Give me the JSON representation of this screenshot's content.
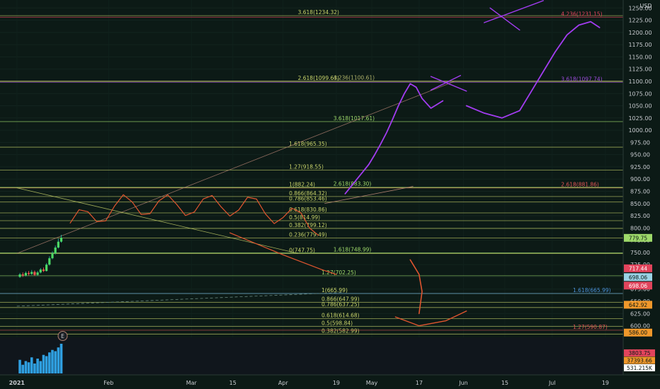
{
  "chart_data": {
    "type": "line",
    "title": "",
    "xlabel": "",
    "ylabel": "",
    "currency": "USD",
    "ylim": [
      582,
      1262
    ],
    "y_ticks": [
      600,
      625,
      650,
      675,
      700,
      725,
      750,
      775,
      800,
      825,
      850,
      875,
      900,
      925,
      950,
      975,
      1000,
      1025,
      1050,
      1075,
      1100,
      1125,
      1150,
      1175,
      1200,
      1225,
      1250
    ],
    "x_ticks": [
      {
        "label": "2021",
        "day": 0
      },
      {
        "label": "Feb",
        "day": 31
      },
      {
        "label": "Mar",
        "day": 59
      },
      {
        "label": "15",
        "day": 73
      },
      {
        "label": "Apr",
        "day": 90
      },
      {
        "label": "19",
        "day": 108
      },
      {
        "label": "May",
        "day": 120
      },
      {
        "label": "17",
        "day": 136
      },
      {
        "label": "Jun",
        "day": 151
      },
      {
        "label": "15",
        "day": 165
      },
      {
        "label": "Jul",
        "day": 181
      },
      {
        "label": "19",
        "day": 199
      }
    ],
    "xlim": [
      -5,
      205
    ],
    "candles": [
      {
        "day": 1,
        "o": 700,
        "c": 705,
        "h": 708,
        "l": 698
      },
      {
        "day": 2,
        "o": 705,
        "c": 703,
        "h": 709,
        "l": 700
      },
      {
        "day": 3,
        "o": 703,
        "c": 708,
        "h": 711,
        "l": 701
      },
      {
        "day": 4,
        "o": 708,
        "c": 706,
        "h": 712,
        "l": 703
      },
      {
        "day": 5,
        "o": 706,
        "c": 710,
        "h": 714,
        "l": 704
      },
      {
        "day": 6,
        "o": 710,
        "c": 704,
        "h": 713,
        "l": 702
      },
      {
        "day": 7,
        "o": 704,
        "c": 709,
        "h": 712,
        "l": 702
      },
      {
        "day": 8,
        "o": 709,
        "c": 715,
        "h": 718,
        "l": 707
      },
      {
        "day": 9,
        "o": 715,
        "c": 712,
        "h": 719,
        "l": 710
      },
      {
        "day": 10,
        "o": 712,
        "c": 725,
        "h": 728,
        "l": 711
      },
      {
        "day": 11,
        "o": 725,
        "c": 738,
        "h": 742,
        "l": 723
      },
      {
        "day": 12,
        "o": 738,
        "c": 748,
        "h": 752,
        "l": 736
      },
      {
        "day": 13,
        "o": 748,
        "c": 760,
        "h": 764,
        "l": 746
      },
      {
        "day": 14,
        "o": 760,
        "c": 772,
        "h": 778,
        "l": 758
      },
      {
        "day": 15,
        "o": 772,
        "c": 780,
        "h": 786,
        "l": 770
      }
    ],
    "horizontal_levels": [
      {
        "label": "3.618(1234.32)",
        "value": 1234.32,
        "day": 95,
        "color": "#c9d46a"
      },
      {
        "label": "4.236(1231.15)",
        "value": 1231.15,
        "day": 184,
        "color": "#e2445c"
      },
      {
        "label": "2.618(1099.63)",
        "value": 1099.63,
        "day": 95,
        "color": "#c9d46a"
      },
      {
        "label": "4.236(1100.61)",
        "value": 1100.61,
        "day": 107,
        "color": "#b0b36a"
      },
      {
        "label": "3.618(1097.74)",
        "value": 1097.74,
        "day": 184,
        "color": "#9b4bd9"
      },
      {
        "label": "3.618(1017.61)",
        "value": 1017.61,
        "day": 107,
        "color": "#9ed96a"
      },
      {
        "label": "1.618(965.35)",
        "value": 965.35,
        "day": 92,
        "color": "#c9d46a"
      },
      {
        "label": "1.27(918.55)",
        "value": 918.55,
        "day": 92,
        "color": "#c9d46a"
      },
      {
        "label": "2.618(883.30)",
        "value": 883.3,
        "day": 107,
        "color": "#9ed96a"
      },
      {
        "label": "2.618(881.86)",
        "value": 881.86,
        "day": 184,
        "color": "#e05555"
      },
      {
        "label": "1(882.24)",
        "value": 882.24,
        "day": 92,
        "color": "#c9d46a"
      },
      {
        "label": "0.866(864.32)",
        "value": 864.32,
        "day": 92,
        "color": "#c9d46a"
      },
      {
        "label": "0.786(853.46)",
        "value": 853.46,
        "day": 92,
        "color": "#c9d46a"
      },
      {
        "label": "0.618(830.86)",
        "value": 830.86,
        "day": 92,
        "color": "#c9d46a"
      },
      {
        "label": "0.5(814.99)",
        "value": 814.99,
        "day": 92,
        "color": "#c9d46a"
      },
      {
        "label": "0.382(799.12)",
        "value": 799.12,
        "day": 92,
        "color": "#c9d46a"
      },
      {
        "label": "0.236(779.49)",
        "value": 779.49,
        "day": 92,
        "color": "#c9d46a"
      },
      {
        "label": "0(747.75)",
        "value": 747.75,
        "day": 92,
        "color": "#c9d46a"
      },
      {
        "label": "1.618(748.99)",
        "value": 748.99,
        "day": 107,
        "color": "#9ed96a"
      },
      {
        "label": "1.27(702.25)",
        "value": 702.25,
        "day": 103,
        "color": "#9ed96a"
      },
      {
        "label": "1(665.99)",
        "value": 665.99,
        "day": 103,
        "color": "#c9d46a"
      },
      {
        "label": "1.618(665.99)",
        "value": 665.99,
        "day": 188,
        "color": "#4a90d9"
      },
      {
        "label": "0.866(647.99)",
        "value": 647.99,
        "day": 103,
        "color": "#c9d46a"
      },
      {
        "label": "0.786(637.25)",
        "value": 637.25,
        "day": 103,
        "color": "#c9d46a"
      },
      {
        "label": "0.618(614.68)",
        "value": 614.68,
        "day": 103,
        "color": "#c9d46a"
      },
      {
        "label": "0.5(598.84)",
        "value": 598.84,
        "day": 103,
        "color": "#c9d46a"
      },
      {
        "label": "0.382(582.99)",
        "value": 582.99,
        "day": 103,
        "color": "#c9d46a"
      },
      {
        "label": "1.27(590.87)",
        "value": 590.87,
        "day": 188,
        "color": "#e05555"
      }
    ],
    "price_tags": [
      {
        "label": "779.75",
        "value": 779.75,
        "color": "#9ed96a",
        "text_color": "#0c1a16"
      },
      {
        "label": "717.44",
        "value": 717.44,
        "color": "#e2445c",
        "text_color": "#ffffff"
      },
      {
        "label": "698.06",
        "value": 698.06,
        "color": "#9bd3e6",
        "text_color": "#0c1a16"
      },
      {
        "label": "698.06",
        "value": 698.06,
        "color": "#e2445c",
        "text_color": "#ffffff"
      },
      {
        "label": "642.92",
        "value": 642.92,
        "color": "#f0982b",
        "text_color": "#0c1a16"
      },
      {
        "label": "586.00",
        "value": 586.0,
        "color": "#f0982b",
        "text_color": "#0c1a16"
      }
    ],
    "volume_tags": [
      {
        "label": "3803.75",
        "color": "#e2445c"
      },
      {
        "label": "37393.66",
        "color": "#f0982b"
      },
      {
        "label": "531.215K",
        "color": "#ffffff"
      }
    ],
    "volumes": [
      22,
      14,
      20,
      18,
      26,
      16,
      24,
      20,
      30,
      28,
      34,
      38,
      36,
      42,
      48
    ],
    "projection": [
      {
        "day": 111,
        "value": 870
      },
      {
        "day": 113,
        "value": 885
      },
      {
        "day": 115,
        "value": 900
      },
      {
        "day": 117,
        "value": 915
      },
      {
        "day": 119,
        "value": 930
      },
      {
        "day": 121,
        "value": 950
      },
      {
        "day": 123,
        "value": 972
      },
      {
        "day": 125,
        "value": 995
      },
      {
        "day": 127,
        "value": 1022
      },
      {
        "day": 129,
        "value": 1050
      },
      {
        "day": 131,
        "value": 1075
      },
      {
        "day": 133,
        "value": 1095
      },
      {
        "day": 135,
        "value": 1088
      },
      {
        "day": 137,
        "value": 1065
      },
      {
        "day": 140,
        "value": 1045
      },
      {
        "day": 144,
        "value": 1060
      }
    ],
    "projection_2": [
      {
        "day": 152,
        "value": 1050
      },
      {
        "day": 158,
        "value": 1035
      },
      {
        "day": 164,
        "value": 1025
      },
      {
        "day": 170,
        "value": 1040
      },
      {
        "day": 174,
        "value": 1080
      },
      {
        "day": 178,
        "value": 1120
      },
      {
        "day": 182,
        "value": 1160
      },
      {
        "day": 186,
        "value": 1195
      },
      {
        "day": 190,
        "value": 1215
      },
      {
        "day": 194,
        "value": 1222
      },
      {
        "day": 197,
        "value": 1210
      }
    ],
    "down_projection": [
      {
        "day": 133,
        "value": 735
      },
      {
        "day": 136,
        "value": 705
      },
      {
        "day": 137,
        "value": 670
      },
      {
        "day": 136,
        "value": 625
      }
    ],
    "event_marker": "E"
  }
}
